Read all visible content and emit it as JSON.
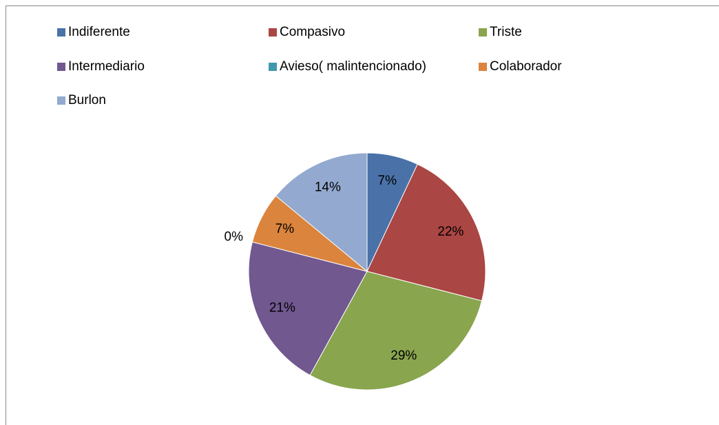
{
  "chart_data": {
    "type": "pie",
    "categories": [
      "Indiferente",
      "Compasivo",
      "Triste",
      "Intermediario",
      "Avieso( malintencionado)",
      "Colaborador",
      "Burlon"
    ],
    "values": [
      7,
      22,
      29,
      21,
      0,
      7,
      14
    ],
    "value_labels": [
      "7%",
      "22%",
      "29%",
      "21%",
      "0%",
      "7%",
      "14%"
    ],
    "colors": [
      "#4a72a8",
      "#aa4643",
      "#89a54e",
      "#71588f",
      "#4198af",
      "#db843d",
      "#93a9cf"
    ],
    "legend": "top"
  }
}
